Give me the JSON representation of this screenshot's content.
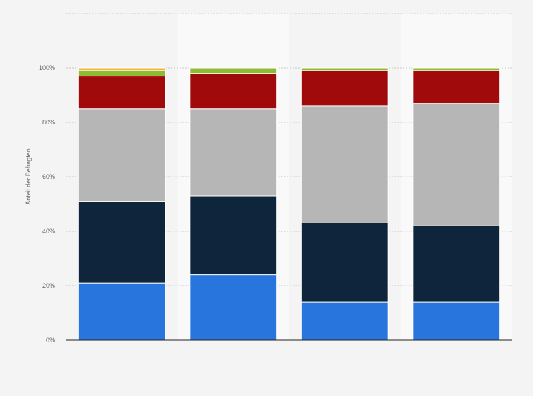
{
  "chart_data": {
    "type": "bar",
    "stacked": true,
    "ylabel": "Anteil der Befragten",
    "ylim": [
      0,
      120
    ],
    "yticks": [
      0,
      20,
      40,
      60,
      80,
      100
    ],
    "ytick_labels": [
      "0%",
      "20%",
      "40%",
      "60%",
      "80%",
      "100%"
    ],
    "grid": true,
    "categories": [
      "",
      "",
      "",
      ""
    ],
    "series": [
      {
        "color": "#2876dd",
        "values": [
          21,
          24,
          14,
          14
        ]
      },
      {
        "color": "#0f253b",
        "values": [
          30,
          29,
          29,
          28
        ]
      },
      {
        "color": "#b6b6b6",
        "values": [
          34,
          32,
          43,
          45
        ]
      },
      {
        "color": "#a10a0a",
        "values": [
          12,
          13,
          13,
          12
        ]
      },
      {
        "color": "#8eba34",
        "values": [
          2,
          2,
          1,
          1
        ]
      },
      {
        "color": "#f0b43d",
        "values": [
          1,
          0,
          0,
          0
        ]
      }
    ]
  },
  "colors": {
    "background": "#f4f4f4",
    "band_light": "#f9f9f9"
  }
}
